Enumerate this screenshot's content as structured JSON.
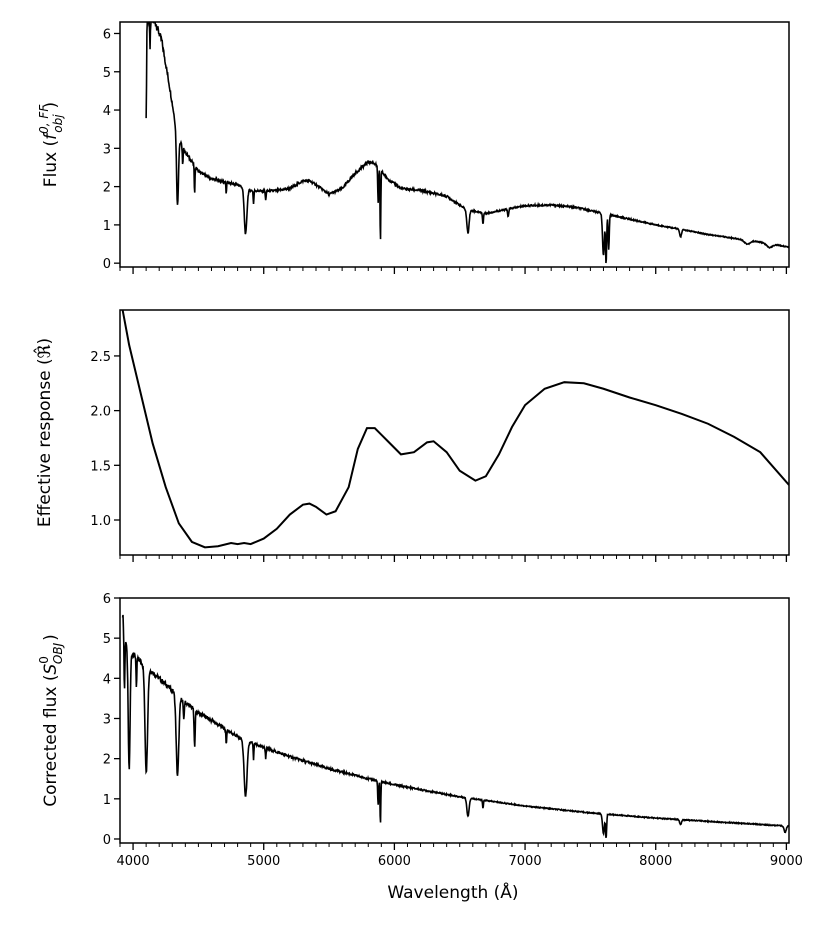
{
  "chart_data": [
    {
      "type": "line",
      "panel": "top",
      "ylabel": "Flux (f0,FF obj)",
      "ylabel_parts": {
        "main": "Flux (",
        "symbol": "f",
        "sup": "0, FF",
        "sub": "obj",
        "close": ")"
      },
      "xlim": [
        3900,
        9020
      ],
      "ylim": [
        -0.1,
        6.3
      ],
      "yticks": [
        0,
        1,
        2,
        3,
        4,
        5,
        6
      ],
      "xticks": [
        4000,
        5000,
        6000,
        7000,
        8000,
        9000
      ],
      "show_xticklabels": false,
      "continuum": [
        [
          4100,
          6.3
        ],
        [
          4170,
          6.3
        ],
        [
          4220,
          5.8
        ],
        [
          4280,
          4.6
        ],
        [
          4340,
          3.3
        ],
        [
          4400,
          2.9
        ],
        [
          4500,
          2.4
        ],
        [
          4600,
          2.2
        ],
        [
          4700,
          2.12
        ],
        [
          4800,
          2.05
        ],
        [
          4900,
          1.9
        ],
        [
          5000,
          1.88
        ],
        [
          5100,
          1.9
        ],
        [
          5200,
          1.95
        ],
        [
          5300,
          2.15
        ],
        [
          5350,
          2.15
        ],
        [
          5400,
          2.05
        ],
        [
          5500,
          1.8
        ],
        [
          5600,
          1.95
        ],
        [
          5700,
          2.35
        ],
        [
          5800,
          2.65
        ],
        [
          5850,
          2.6
        ],
        [
          5950,
          2.2
        ],
        [
          6050,
          1.95
        ],
        [
          6200,
          1.9
        ],
        [
          6400,
          1.75
        ],
        [
          6550,
          1.4
        ],
        [
          6700,
          1.3
        ],
        [
          6850,
          1.4
        ],
        [
          7000,
          1.5
        ],
        [
          7200,
          1.52
        ],
        [
          7400,
          1.45
        ],
        [
          7600,
          1.3
        ],
        [
          7800,
          1.15
        ],
        [
          8000,
          1.0
        ],
        [
          8200,
          0.88
        ],
        [
          8400,
          0.75
        ],
        [
          8600,
          0.65
        ],
        [
          8800,
          0.55
        ],
        [
          9020,
          0.42
        ]
      ],
      "lines": [
        {
          "x": 4101,
          "depth": 2.7,
          "width": 3
        },
        {
          "x": 4130,
          "depth": 0.8,
          "width": 3
        },
        {
          "x": 4340,
          "depth": 1.8,
          "width": 10
        },
        {
          "x": 4380,
          "depth": 0.5,
          "width": 4
        },
        {
          "x": 4471,
          "depth": 0.7,
          "width": 4
        },
        {
          "x": 4713,
          "depth": 0.35,
          "width": 3
        },
        {
          "x": 4861,
          "depth": 1.2,
          "width": 14
        },
        {
          "x": 4922,
          "depth": 0.35,
          "width": 4
        },
        {
          "x": 5015,
          "depth": 0.25,
          "width": 4
        },
        {
          "x": 5876,
          "depth": 0.9,
          "width": 5
        },
        {
          "x": 5893,
          "depth": 1.9,
          "width": 4
        },
        {
          "x": 6563,
          "depth": 0.6,
          "width": 12
        },
        {
          "x": 6678,
          "depth": 0.3,
          "width": 5
        },
        {
          "x": 6870,
          "depth": 0.2,
          "width": 6
        },
        {
          "x": 7600,
          "depth": 1.1,
          "width": 10
        },
        {
          "x": 7620,
          "depth": 1.3,
          "width": 6
        },
        {
          "x": 7640,
          "depth": 0.9,
          "width": 6
        },
        {
          "x": 8190,
          "depth": 0.2,
          "width": 10
        },
        {
          "x": 8700,
          "depth": 0.1,
          "width": 30
        },
        {
          "x": 8870,
          "depth": 0.1,
          "width": 30
        }
      ]
    },
    {
      "type": "line",
      "panel": "middle",
      "ylabel": "Effective response (ℜ̂)",
      "ylabel_parts": {
        "main": "Effective response (",
        "symbol": "ℜ̂",
        "close": ")"
      },
      "xlim": [
        3900,
        9020
      ],
      "ylim": [
        0.68,
        2.92
      ],
      "yticks": [
        1.0,
        1.5,
        2.0,
        2.5
      ],
      "ytick_labels": [
        "1.0",
        "1.5",
        "2.0",
        "2.5"
      ],
      "xticks": [
        4000,
        5000,
        6000,
        7000,
        8000,
        9000
      ],
      "show_xticklabels": false,
      "curve": [
        [
          3920,
          2.92
        ],
        [
          3970,
          2.6
        ],
        [
          4050,
          2.2
        ],
        [
          4150,
          1.7
        ],
        [
          4250,
          1.3
        ],
        [
          4350,
          0.97
        ],
        [
          4450,
          0.8
        ],
        [
          4550,
          0.75
        ],
        [
          4650,
          0.76
        ],
        [
          4750,
          0.79
        ],
        [
          4800,
          0.78
        ],
        [
          4850,
          0.79
        ],
        [
          4900,
          0.78
        ],
        [
          5000,
          0.83
        ],
        [
          5100,
          0.92
        ],
        [
          5200,
          1.05
        ],
        [
          5300,
          1.14
        ],
        [
          5350,
          1.15
        ],
        [
          5400,
          1.12
        ],
        [
          5480,
          1.05
        ],
        [
          5550,
          1.08
        ],
        [
          5650,
          1.3
        ],
        [
          5720,
          1.65
        ],
        [
          5790,
          1.84
        ],
        [
          5850,
          1.84
        ],
        [
          5950,
          1.72
        ],
        [
          6050,
          1.6
        ],
        [
          6150,
          1.62
        ],
        [
          6250,
          1.71
        ],
        [
          6300,
          1.72
        ],
        [
          6400,
          1.62
        ],
        [
          6500,
          1.45
        ],
        [
          6620,
          1.36
        ],
        [
          6700,
          1.4
        ],
        [
          6800,
          1.6
        ],
        [
          6900,
          1.85
        ],
        [
          7000,
          2.05
        ],
        [
          7150,
          2.2
        ],
        [
          7300,
          2.26
        ],
        [
          7450,
          2.25
        ],
        [
          7600,
          2.2
        ],
        [
          7800,
          2.12
        ],
        [
          8000,
          2.05
        ],
        [
          8200,
          1.97
        ],
        [
          8400,
          1.88
        ],
        [
          8600,
          1.76
        ],
        [
          8800,
          1.62
        ],
        [
          9020,
          1.32
        ]
      ]
    },
    {
      "type": "line",
      "panel": "bottom",
      "xlabel": "Wavelength (Å)",
      "ylabel": "Corrected flux (S0 OBJ)",
      "ylabel_parts": {
        "main": "Corrected flux (",
        "symbol": "S",
        "sup": "0",
        "sub": "OBJ",
        "close": ")"
      },
      "xlim": [
        3900,
        9020
      ],
      "ylim": [
        -0.1,
        6.0
      ],
      "yticks": [
        0,
        1,
        2,
        3,
        4,
        5,
        6
      ],
      "xticks": [
        4000,
        5000,
        6000,
        7000,
        8000,
        9000
      ],
      "xtick_labels": [
        "4000",
        "5000",
        "6000",
        "7000",
        "8000",
        "9000"
      ],
      "continuum": [
        [
          3920,
          5.6
        ],
        [
          3950,
          4.8
        ],
        [
          4000,
          4.6
        ],
        [
          4100,
          4.3
        ],
        [
          4200,
          4.0
        ],
        [
          4300,
          3.7
        ],
        [
          4400,
          3.4
        ],
        [
          4500,
          3.15
        ],
        [
          4600,
          2.95
        ],
        [
          4700,
          2.75
        ],
        [
          4800,
          2.55
        ],
        [
          4900,
          2.4
        ],
        [
          5000,
          2.28
        ],
        [
          5200,
          2.05
        ],
        [
          5500,
          1.75
        ],
        [
          5800,
          1.5
        ],
        [
          6000,
          1.35
        ],
        [
          6500,
          1.05
        ],
        [
          7000,
          0.82
        ],
        [
          7500,
          0.65
        ],
        [
          8000,
          0.52
        ],
        [
          8500,
          0.42
        ],
        [
          9020,
          0.32
        ]
      ],
      "lines": [
        {
          "x": 3934,
          "depth": 1.5,
          "width": 5
        },
        {
          "x": 3970,
          "depth": 3.0,
          "width": 10
        },
        {
          "x": 4026,
          "depth": 0.8,
          "width": 4
        },
        {
          "x": 4101,
          "depth": 2.6,
          "width": 14
        },
        {
          "x": 4340,
          "depth": 2.0,
          "width": 14
        },
        {
          "x": 4388,
          "depth": 0.5,
          "width": 5
        },
        {
          "x": 4471,
          "depth": 0.9,
          "width": 6
        },
        {
          "x": 4713,
          "depth": 0.4,
          "width": 4
        },
        {
          "x": 4861,
          "depth": 1.4,
          "width": 16
        },
        {
          "x": 4922,
          "depth": 0.4,
          "width": 4
        },
        {
          "x": 5015,
          "depth": 0.25,
          "width": 4
        },
        {
          "x": 5876,
          "depth": 0.6,
          "width": 5
        },
        {
          "x": 5893,
          "depth": 1.1,
          "width": 4
        },
        {
          "x": 6563,
          "depth": 0.45,
          "width": 12
        },
        {
          "x": 6678,
          "depth": 0.2,
          "width": 5
        },
        {
          "x": 7600,
          "depth": 0.5,
          "width": 10
        },
        {
          "x": 7620,
          "depth": 0.6,
          "width": 6
        },
        {
          "x": 8190,
          "depth": 0.12,
          "width": 10
        },
        {
          "x": 8990,
          "depth": 0.15,
          "width": 12
        }
      ]
    }
  ],
  "colors": {
    "line": "#000000",
    "axis": "#000000",
    "background": "#ffffff"
  }
}
